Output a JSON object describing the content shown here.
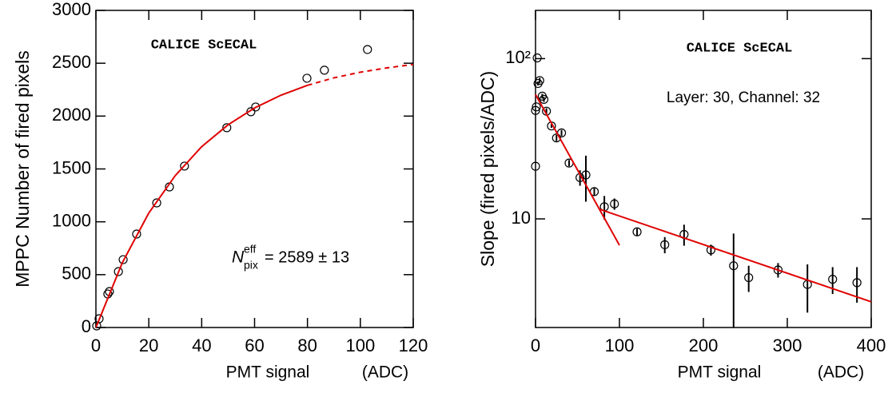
{
  "chart_data": [
    {
      "type": "scatter",
      "xlabel": "PMT signal",
      "xunit": "(ADC)",
      "ylabel": "MPPC Number of fired pixels",
      "annotation": "CALICE ScECAL",
      "fit_label": {
        "symbol": "N",
        "sup": "eff",
        "sub": "pix",
        "text": "= 2589 ± 13"
      },
      "xlim": [
        0,
        120
      ],
      "xticks": [
        0,
        20,
        40,
        60,
        80,
        100,
        120
      ],
      "ylim": [
        0,
        3000
      ],
      "yticks": [
        0,
        500,
        1000,
        1500,
        2000,
        2500,
        3000
      ],
      "log_y": false,
      "series": [
        {
          "type": "points",
          "color": "#000000",
          "x": [
            0.3,
            1.2,
            4.5,
            5.1,
            8.5,
            10.3,
            15.4,
            23,
            27.8,
            33.5,
            49.5,
            58.6,
            60.4,
            79.8,
            86.4,
            102.7
          ],
          "values": [
            15,
            83,
            317,
            340,
            529,
            642,
            884,
            1179,
            1330,
            1527,
            1890,
            2041,
            2086,
            2358,
            2434,
            2630
          ]
        },
        {
          "type": "line",
          "color": "#e00000",
          "dashed": false,
          "x": [
            0,
            10,
            20,
            30,
            40,
            50,
            60,
            70,
            80
          ],
          "values": [
            0,
            614,
            1083,
            1437,
            1711,
            1918,
            2077,
            2198,
            2291
          ]
        },
        {
          "type": "line",
          "color": "#e00000",
          "dashed": true,
          "x": [
            80,
            90,
            100,
            110,
            120
          ],
          "values": [
            2291,
            2362,
            2415,
            2456,
            2488
          ]
        }
      ]
    },
    {
      "type": "scatter",
      "xlabel": "PMT signal",
      "xunit": "(ADC)",
      "ylabel": "Slope  (fired pixels/ADC)",
      "annotation": "CALICE ScECAL",
      "subannotation": "Layer: 30, Channel: 32",
      "xlim": [
        0,
        400
      ],
      "xticks": [
        0,
        100,
        200,
        300,
        400
      ],
      "ylim": [
        2.1,
        200
      ],
      "yticks": [
        10,
        {
          "value": 100,
          "label": "10²"
        }
      ],
      "log_y": true,
      "series": [
        {
          "type": "points",
          "color": "#000000",
          "x": [
            0,
            0,
            1,
            2,
            3,
            5,
            8,
            10,
            13,
            19,
            25,
            31,
            40,
            53,
            60,
            70,
            82,
            94,
            121,
            154,
            177,
            209,
            236,
            254,
            289,
            324,
            354,
            383
          ],
          "values": [
            21.3,
            47.5,
            50,
            101,
            70,
            73,
            58.3,
            55.7,
            47,
            38,
            32,
            34.4,
            22.3,
            18.1,
            18.8,
            14.8,
            11.9,
            12.4,
            8.3,
            6.9,
            8.0,
            6.4,
            5.1,
            4.3,
            4.8,
            3.9,
            4.2,
            4.0
          ],
          "errors": [
            0,
            0,
            0,
            0,
            2,
            3,
            2,
            2,
            2,
            1,
            1.5,
            1.5,
            1,
            2,
            6,
            0.8,
            2,
            1,
            0.4,
            0.8,
            1.2,
            0.5,
            3,
            0.8,
            0.5,
            1.3,
            0.8,
            1
          ]
        },
        {
          "type": "line",
          "color": "#e00000",
          "dashed": false,
          "x": [
            0,
            100
          ],
          "values": [
            59.7,
            6.85
          ]
        },
        {
          "type": "line",
          "color": "#e00000",
          "dashed": false,
          "x": [
            76,
            400
          ],
          "values": [
            11.5,
            3.04
          ]
        }
      ]
    }
  ]
}
